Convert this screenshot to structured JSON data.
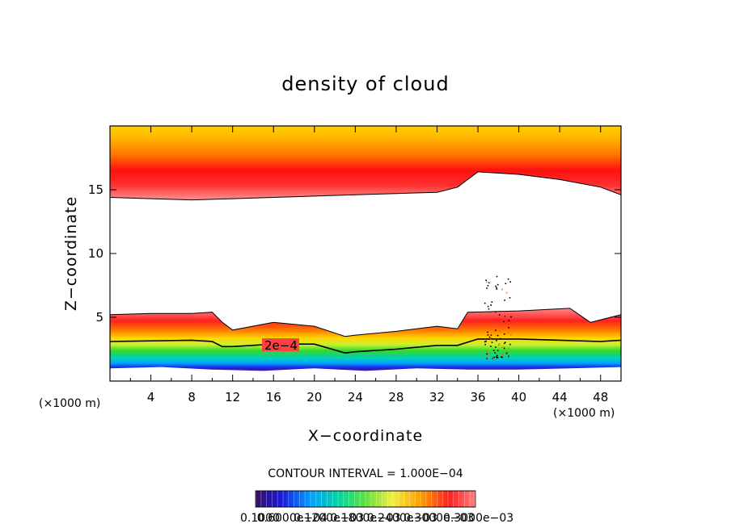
{
  "chart_data": {
    "type": "heatmap",
    "title": "density of cloud",
    "xlabel": "X−coordinate",
    "ylabel": "Z−coordinate",
    "x_unit_left": "(×1000 m)",
    "x_unit_right": "(×1000 m)",
    "xlim": [
      0,
      50
    ],
    "ylim": [
      0,
      20
    ],
    "x_ticks": [
      "4",
      "8",
      "12",
      "16",
      "20",
      "24",
      "28",
      "32",
      "36",
      "40",
      "44",
      "48"
    ],
    "y_ticks": [
      "5",
      "10",
      "15"
    ],
    "contour_label": "2e−4",
    "contour_interval_text": "CONTOUR INTERVAL = 1.000E−04",
    "colorbar_labels": [
      "0.1000",
      "0.6000e−04",
      "0.1200e−03",
      "0.1800e−03",
      "0.2400e−03",
      "0.3000e−03",
      "0.3000e−03"
    ],
    "colormap": [
      "#3a1060",
      "#1a1ae0",
      "#00a0ff",
      "#00d8a0",
      "#30e030",
      "#c8f030",
      "#ffe000",
      "#ff9000",
      "#ff2020",
      "#ff8080"
    ],
    "layers": {
      "upper_cloud_bottom": [
        [
          0,
          14.4
        ],
        [
          4,
          14.3
        ],
        [
          8,
          14.2
        ],
        [
          12,
          14.3
        ],
        [
          16,
          14.4
        ],
        [
          20,
          14.5
        ],
        [
          24,
          14.6
        ],
        [
          28,
          14.7
        ],
        [
          32,
          14.8
        ],
        [
          34,
          15.2
        ],
        [
          36,
          16.4
        ],
        [
          40,
          16.2
        ],
        [
          44,
          15.8
        ],
        [
          48,
          15.2
        ],
        [
          50,
          14.6
        ]
      ],
      "lower_cloud_top": [
        [
          0,
          5.2
        ],
        [
          4,
          5.3
        ],
        [
          8,
          5.3
        ],
        [
          10,
          5.4
        ],
        [
          11,
          4.6
        ],
        [
          12,
          4.0
        ],
        [
          16,
          4.6
        ],
        [
          20,
          4.3
        ],
        [
          23,
          3.5
        ],
        [
          24,
          3.6
        ],
        [
          28,
          3.9
        ],
        [
          32,
          4.3
        ],
        [
          34,
          4.1
        ],
        [
          35,
          5.4
        ],
        [
          40,
          5.5
        ],
        [
          45,
          5.7
        ],
        [
          47,
          4.6
        ],
        [
          50,
          5.2
        ]
      ],
      "lower_cloud_bottom": [
        [
          0,
          1.0
        ],
        [
          5,
          1.1
        ],
        [
          10,
          0.9
        ],
        [
          15,
          0.8
        ],
        [
          20,
          1.0
        ],
        [
          25,
          0.8
        ],
        [
          30,
          1.0
        ],
        [
          35,
          0.9
        ],
        [
          40,
          0.9
        ],
        [
          45,
          1.0
        ],
        [
          50,
          1.1
        ]
      ],
      "contour_2e4": [
        [
          0,
          3.1
        ],
        [
          8,
          3.2
        ],
        [
          10,
          3.1
        ],
        [
          11,
          2.7
        ],
        [
          12,
          2.7
        ],
        [
          16,
          2.9
        ],
        [
          20,
          2.9
        ],
        [
          23,
          2.2
        ],
        [
          24,
          2.3
        ],
        [
          28,
          2.5
        ],
        [
          32,
          2.8
        ],
        [
          34,
          2.8
        ],
        [
          36,
          3.3
        ],
        [
          40,
          3.3
        ],
        [
          44,
          3.2
        ],
        [
          48,
          3.1
        ],
        [
          50,
          3.2
        ]
      ]
    }
  }
}
